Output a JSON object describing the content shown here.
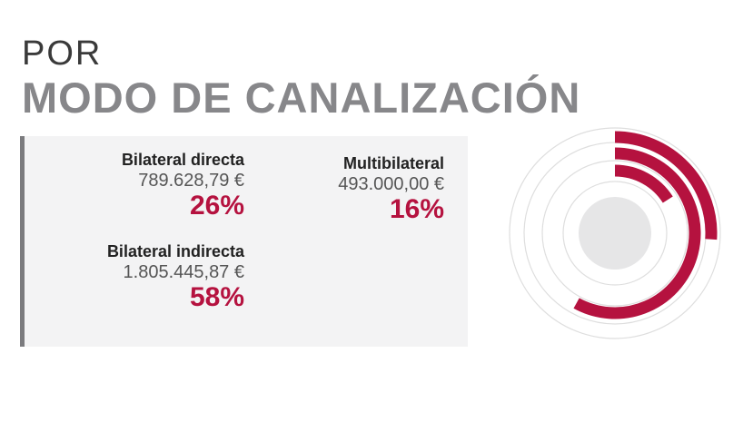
{
  "header": {
    "title_line1": "POR",
    "title_line2": "MODO DE CANALIZACIÓN"
  },
  "colors": {
    "accent": "#b5123f",
    "title_gray": "#87878a",
    "panel_bg": "#f3f3f4",
    "ring_gray": "#dedede",
    "center_gray": "#e6e6e7"
  },
  "chart_data": {
    "type": "radial-bar",
    "categories": [
      "Bilateral directa",
      "Multibilateral",
      "Bilateral indirecta"
    ],
    "values": [
      789628.79,
      493000.0,
      1805445.87
    ],
    "value_labels": [
      "789.628,79 €",
      "493.000,00 €",
      "1.805.445,87 €"
    ],
    "percentages": [
      26,
      16,
      58
    ],
    "percent_labels": [
      "26%",
      "16%",
      "58%"
    ]
  }
}
